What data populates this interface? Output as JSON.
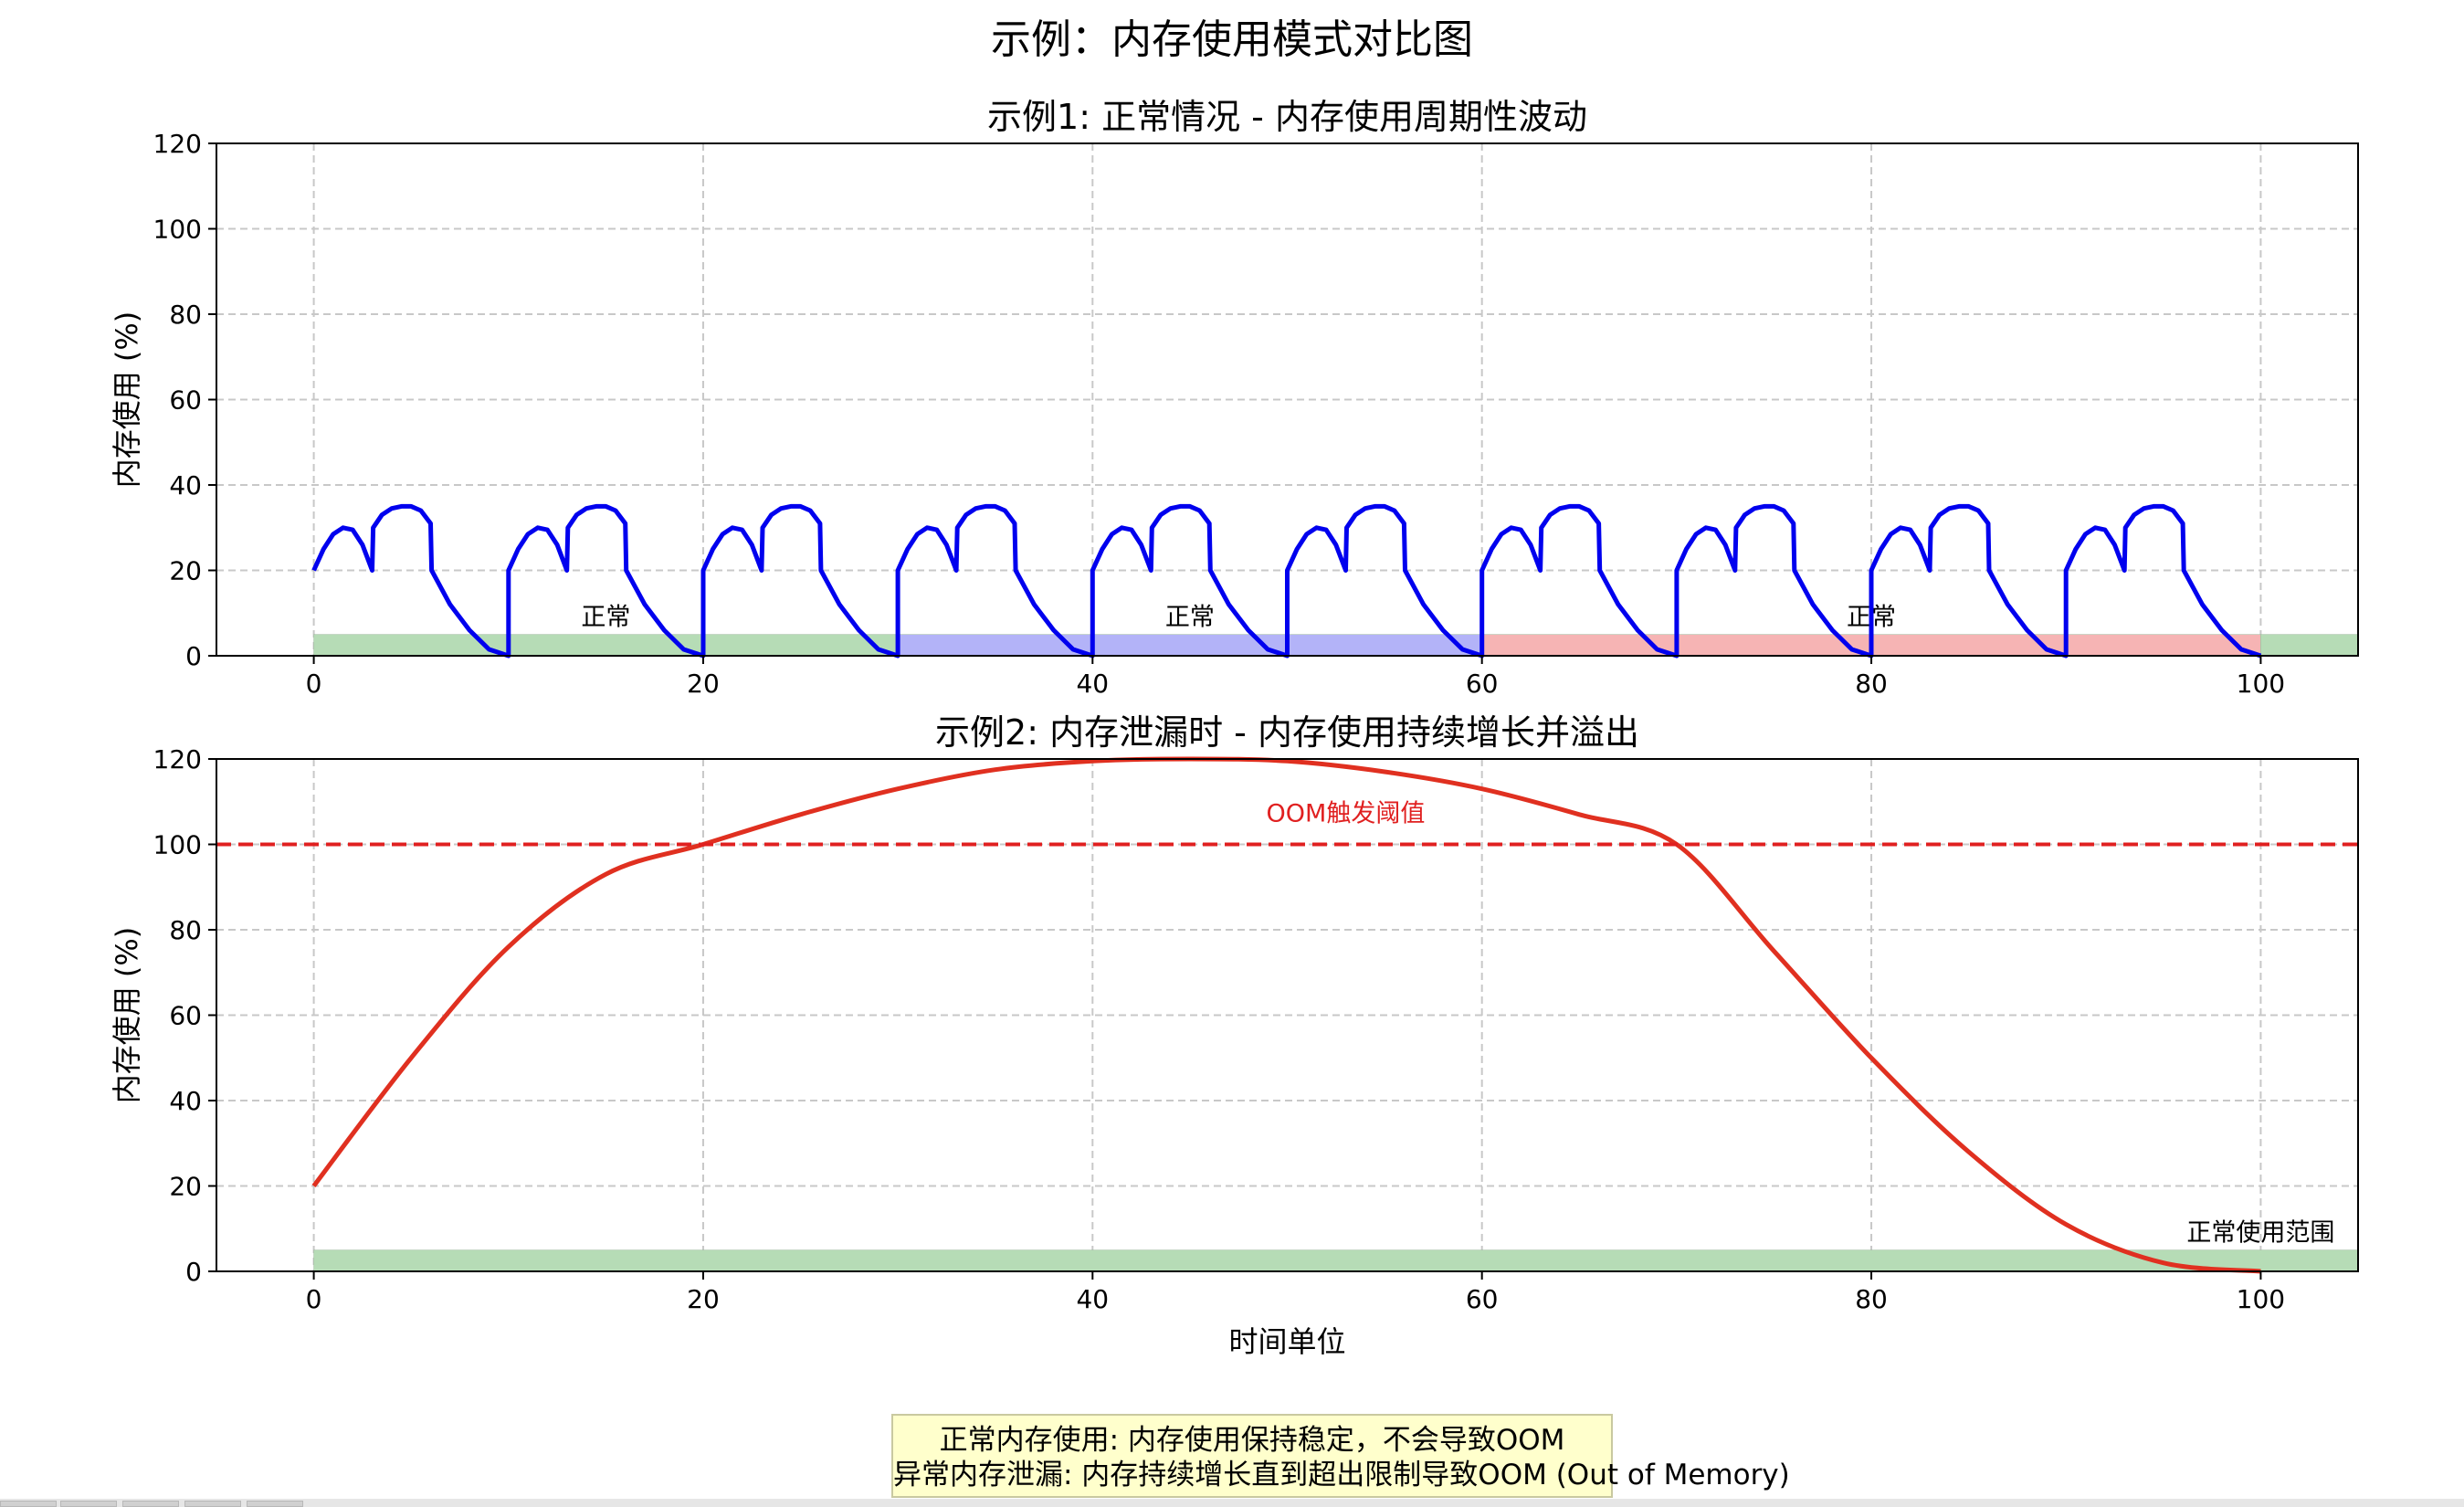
{
  "title": "示例：内存使用模式对比图",
  "note": {
    "line1": "正常内存使用: 内存使用保持稳定，不会导致OOM",
    "line2": "异常内存泄漏: 内存持续增长直到超出限制导致OOM (Out of Memory)"
  },
  "colors": {
    "normal_line": "#0000ee",
    "leak_line": "#e03020",
    "oom_line": "#e02020",
    "band_green": "#b6dcb6",
    "band_blue": "#b3b3f8",
    "band_red": "#f6b4b4"
  },
  "chart_data": [
    {
      "type": "line",
      "title": "示例1: 正常情况 - 内存使用周期性波动",
      "xlabel": "",
      "ylabel": "内存使用 (%)",
      "xlim": [
        -5,
        105
      ],
      "ylim": [
        0,
        120
      ],
      "xticks": [
        "0",
        "20",
        "40",
        "60",
        "80",
        "100"
      ],
      "yticks": [
        "0",
        "20",
        "40",
        "60",
        "80",
        "100",
        "120"
      ],
      "grid": true,
      "period": 10,
      "cycle_points": [
        [
          0,
          20
        ],
        [
          0.5,
          25
        ],
        [
          1,
          28.5
        ],
        [
          1.5,
          30
        ],
        [
          2,
          29.5
        ],
        [
          2.5,
          26
        ],
        [
          3,
          20
        ],
        [
          3.05,
          30
        ],
        [
          3.5,
          33
        ],
        [
          4,
          34.5
        ],
        [
          4.5,
          35
        ],
        [
          5,
          35
        ],
        [
          5.5,
          34
        ],
        [
          6,
          31
        ],
        [
          6.05,
          20
        ],
        [
          7,
          12
        ],
        [
          8,
          6
        ],
        [
          9,
          1.5
        ],
        [
          10,
          0
        ]
      ],
      "series": [
        {
          "x_range": [
            0,
            100
          ],
          "cycles": 10
        }
      ],
      "bands": [
        {
          "x": [
            0,
            30
          ],
          "height": 5,
          "color": "green",
          "label": "正常"
        },
        {
          "x": [
            30,
            60
          ],
          "height": 5,
          "color": "blue",
          "label": "正常"
        },
        {
          "x": [
            60,
            100
          ],
          "height": 5,
          "color": "red",
          "label": "正常"
        },
        {
          "x": [
            100,
            105
          ],
          "height": 5,
          "color": "green",
          "label": ""
        }
      ]
    },
    {
      "type": "line",
      "title": "示例2: 内存泄漏时 - 内存使用持续增长并溢出",
      "xlabel": "时间单位",
      "ylabel": "内存使用 (%)",
      "xlim": [
        -5,
        105
      ],
      "ylim": [
        0,
        120
      ],
      "xticks": [
        "0",
        "20",
        "40",
        "60",
        "80",
        "100"
      ],
      "yticks": [
        "0",
        "20",
        "40",
        "60",
        "80",
        "100",
        "120"
      ],
      "grid": true,
      "series": [
        {
          "x": [
            0,
            5,
            10,
            15,
            20,
            25,
            30,
            35,
            40,
            45,
            50,
            55,
            60,
            65,
            70,
            75,
            80,
            85,
            90,
            95,
            100
          ],
          "y": [
            20,
            50,
            76,
            93,
            100,
            107,
            113,
            117.5,
            119.5,
            120,
            119.5,
            117,
            113,
            107,
            100,
            75,
            50,
            28,
            11,
            2,
            0
          ]
        }
      ],
      "hline": {
        "y": 100,
        "label": "OOM触发阈值"
      },
      "bands": [
        {
          "x": [
            0,
            105
          ],
          "height": 5,
          "color": "green",
          "label": "正常使用范围"
        }
      ]
    }
  ]
}
